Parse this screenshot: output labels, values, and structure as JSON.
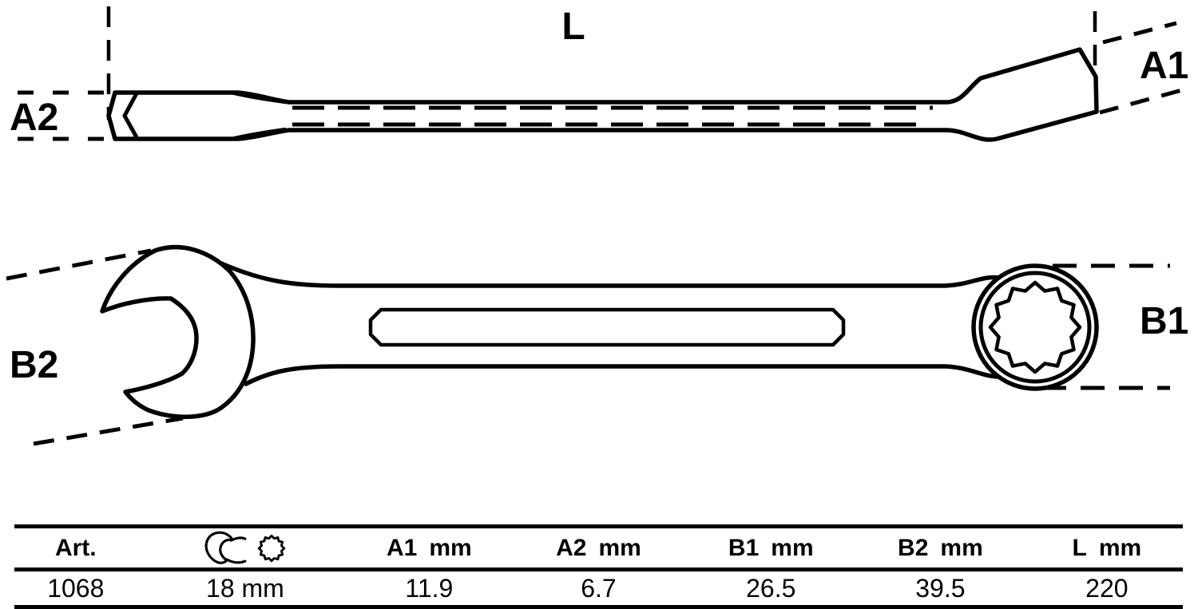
{
  "colors": {
    "ink": "#000000",
    "background": "#ffffff"
  },
  "diagram": {
    "side_view": {
      "label_length": "L",
      "label_a1": "A1",
      "label_a2": "A2"
    },
    "top_view": {
      "label_b1": "B1",
      "label_b2": "B2"
    }
  },
  "table": {
    "art_header": "Art.",
    "art_value": "1068",
    "size_value": "18 mm",
    "size_icons": [
      "open-end-wrench-icon",
      "ring-spanner-12pt-icon"
    ],
    "dims": [
      {
        "name": "A1",
        "unit": "mm",
        "value": "11.9"
      },
      {
        "name": "A2",
        "unit": "mm",
        "value": "6.7"
      },
      {
        "name": "B1",
        "unit": "mm",
        "value": "26.5"
      },
      {
        "name": "B2",
        "unit": "mm",
        "value": "39.5"
      },
      {
        "name": "L",
        "unit": "mm",
        "value": "220"
      }
    ]
  }
}
